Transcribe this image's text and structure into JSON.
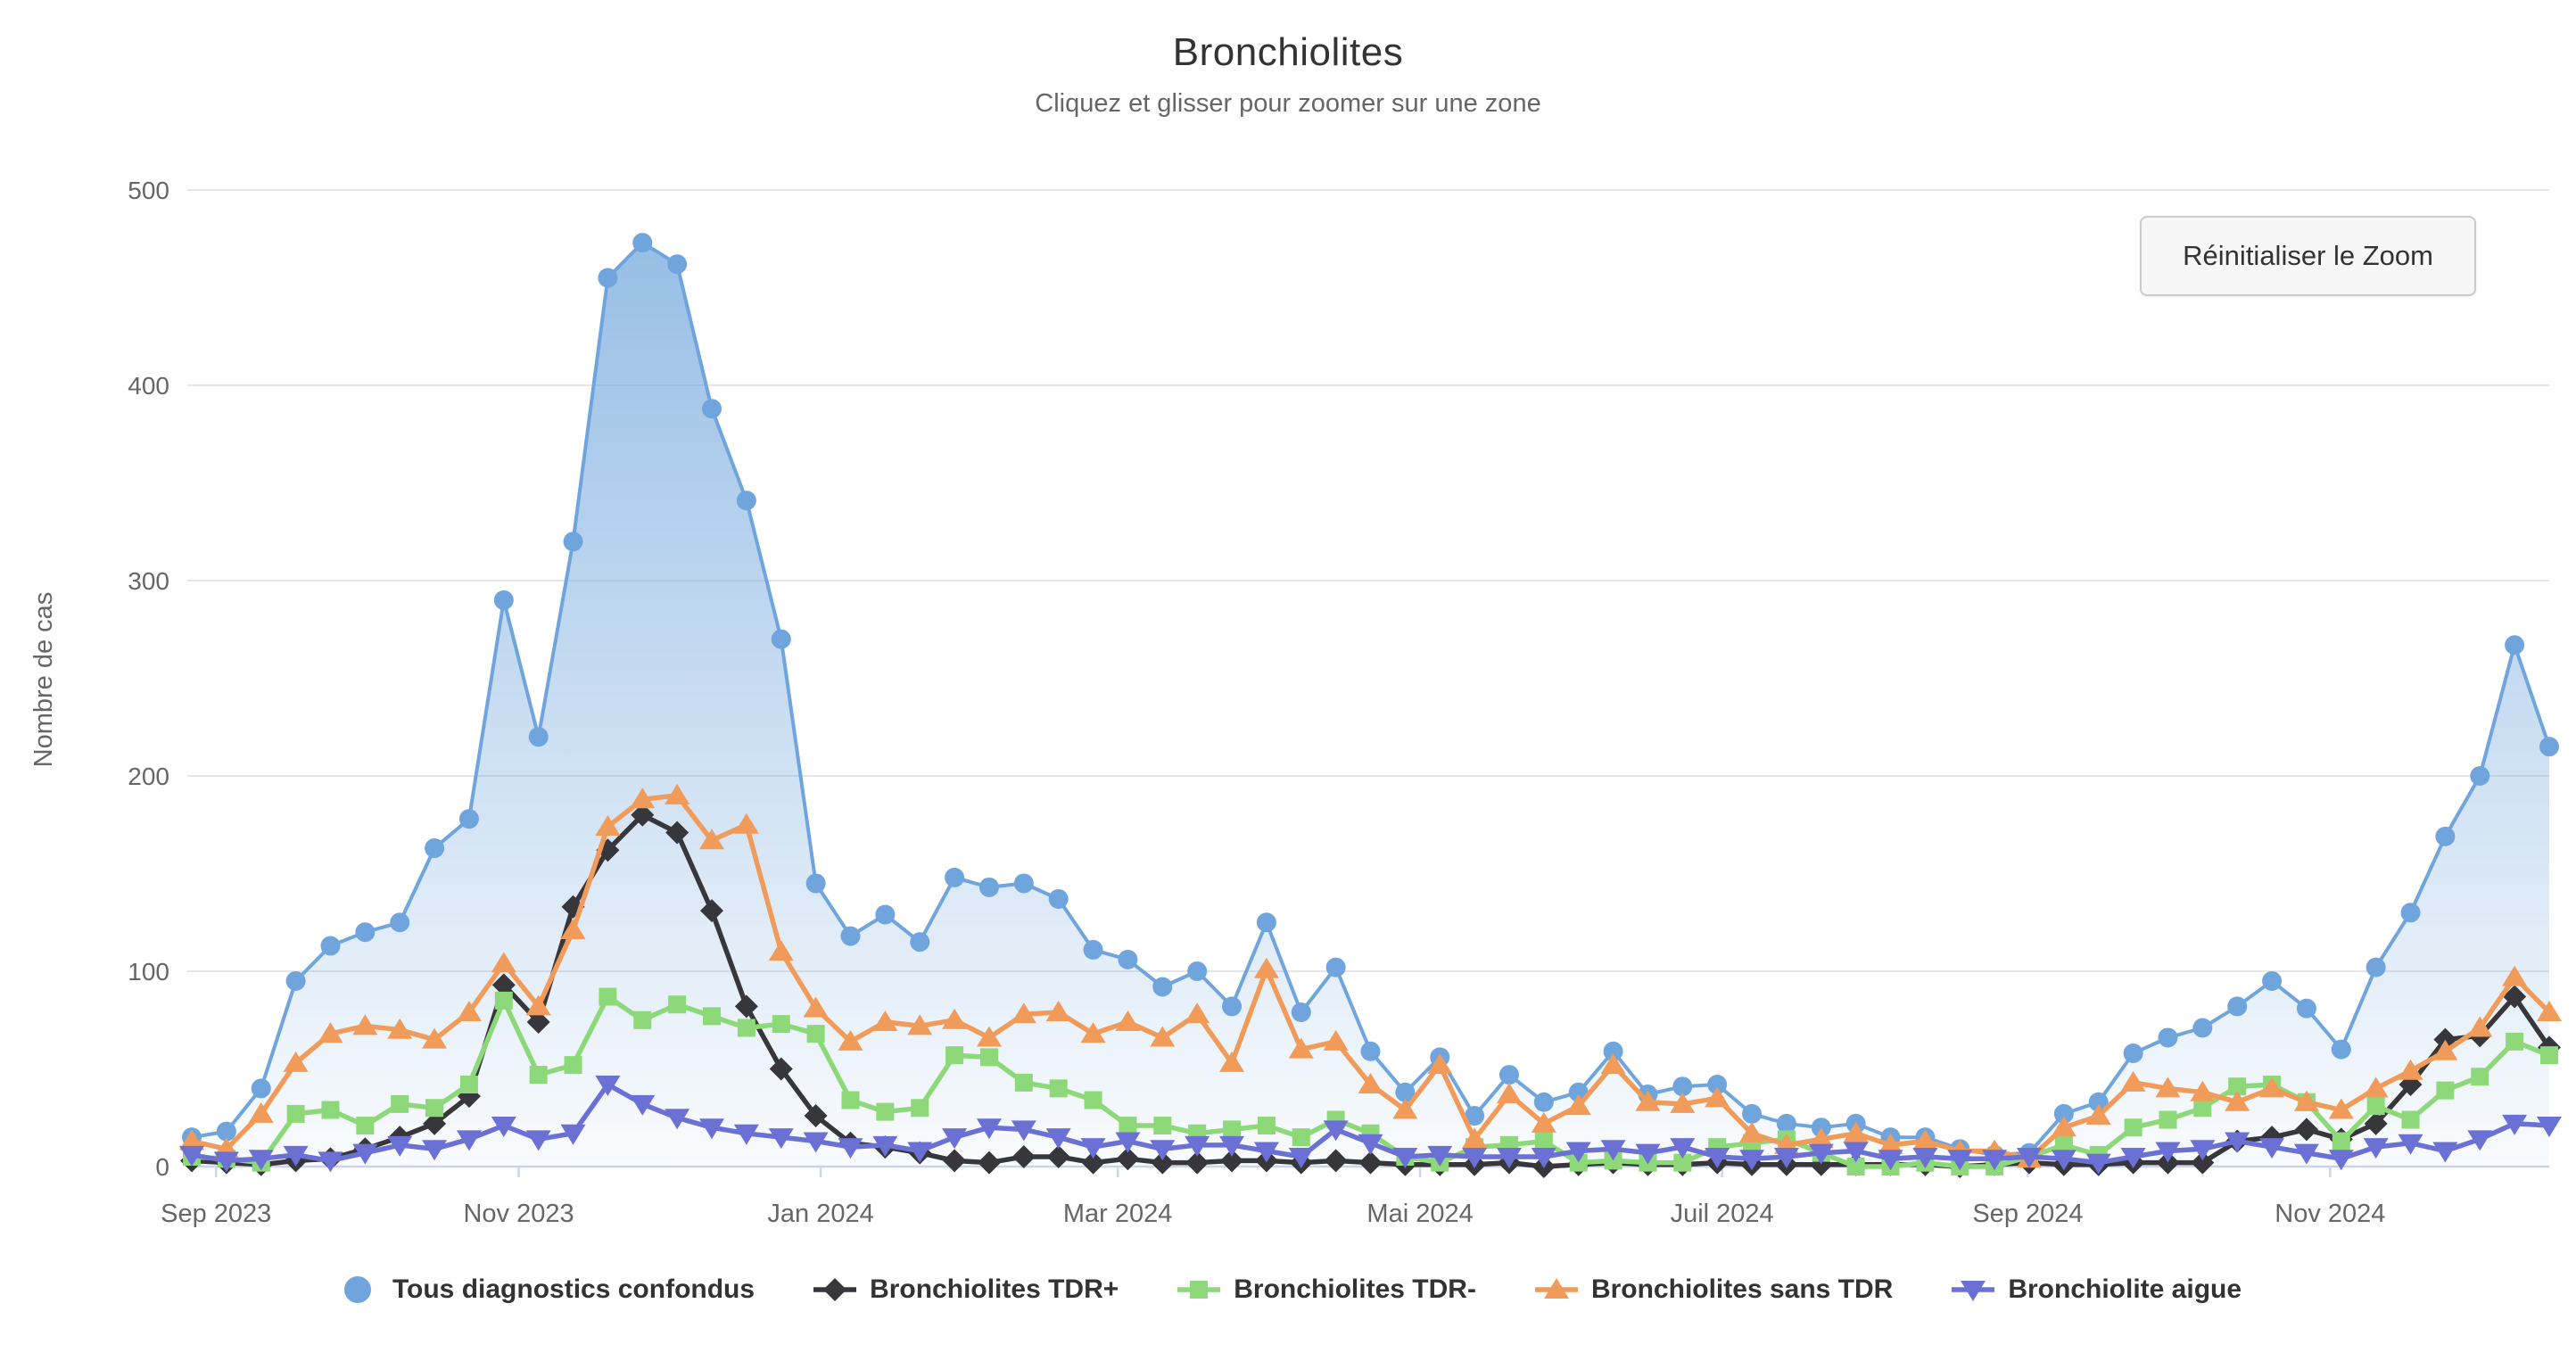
{
  "header": {
    "title": "Bronchiolites",
    "subtitle": "Cliquez et glisser pour zoomer sur une zone"
  },
  "toolbar": {
    "reset_zoom_label": "Réinitialiser le Zoom"
  },
  "chart_data": {
    "type": "line",
    "title": "Bronchiolites",
    "subtitle": "Cliquez et glisser pour zoomer sur une zone",
    "xlabel": "",
    "ylabel": "Nombre de cas",
    "ylim": [
      0,
      500
    ],
    "y_ticks": [
      0,
      100,
      200,
      300,
      400,
      500
    ],
    "grid": "horizontal",
    "legend_position": "bottom",
    "x_unit": "week",
    "points": 69,
    "x_ticks": [
      {
        "label": "Sep 2023",
        "pos": 0.7
      },
      {
        "label": "Nov 2023",
        "pos": 9.43
      },
      {
        "label": "Jan 2024",
        "pos": 18.14
      },
      {
        "label": "Mar 2024",
        "pos": 26.71
      },
      {
        "label": "Mai 2024",
        "pos": 35.43
      },
      {
        "label": "Juil 2024",
        "pos": 44.14
      },
      {
        "label": "Sep 2024",
        "pos": 52.96
      },
      {
        "label": "Nov 2024",
        "pos": 61.68
      }
    ],
    "axis_colors": {
      "grid": "#e6e6e6",
      "axis_line": "#ccd6eb",
      "tick": "#ccd6eb",
      "label": "#666666"
    },
    "series": [
      {
        "name": "Tous diagnostics confondus",
        "color": "#6FA5DC",
        "marker": "circle",
        "fill": "area",
        "values": [
          15,
          18,
          40,
          95,
          113,
          120,
          125,
          163,
          178,
          290,
          220,
          320,
          455,
          473,
          462,
          388,
          341,
          270,
          145,
          118,
          129,
          115,
          148,
          143,
          145,
          137,
          111,
          106,
          92,
          100,
          82,
          125,
          79,
          102,
          59,
          38,
          56,
          26,
          47,
          33,
          38,
          59,
          37,
          41,
          42,
          27,
          22,
          20,
          22,
          15,
          15,
          9,
          6,
          7,
          27,
          33,
          58,
          66,
          71,
          82,
          95,
          81,
          60,
          102,
          130,
          169,
          200,
          267,
          215
        ]
      },
      {
        "name": "Bronchiolites TDR+",
        "color": "#37373B",
        "marker": "diamond",
        "fill": "none",
        "values": [
          3,
          2,
          1,
          3,
          4,
          9,
          15,
          22,
          36,
          93,
          74,
          133,
          162,
          180,
          171,
          131,
          82,
          50,
          26,
          12,
          10,
          7,
          3,
          2,
          5,
          5,
          2,
          4,
          2,
          2,
          3,
          3,
          2,
          3,
          2,
          1,
          1,
          1,
          2,
          0,
          1,
          2,
          1,
          1,
          2,
          1,
          1,
          1,
          1,
          1,
          1,
          0,
          1,
          2,
          1,
          1,
          2,
          2,
          2,
          13,
          15,
          19,
          14,
          22,
          42,
          65,
          67,
          87,
          61
        ]
      },
      {
        "name": "Bronchiolites TDR-",
        "color": "#8DD878",
        "marker": "square",
        "fill": "none",
        "values": [
          5,
          4,
          2,
          27,
          29,
          21,
          32,
          30,
          42,
          85,
          47,
          52,
          87,
          75,
          83,
          77,
          71,
          73,
          68,
          34,
          28,
          30,
          57,
          56,
          43,
          40,
          34,
          21,
          21,
          17,
          19,
          21,
          15,
          24,
          17,
          5,
          2,
          10,
          11,
          13,
          2,
          3,
          2,
          2,
          10,
          12,
          14,
          7,
          0,
          0,
          2,
          0,
          0,
          5,
          11,
          6,
          20,
          24,
          30,
          41,
          42,
          33,
          13,
          31,
          24,
          39,
          46,
          64,
          57
        ]
      },
      {
        "name": "Bronchiolites sans TDR",
        "color": "#F09B59",
        "marker": "triangle-up",
        "fill": "none",
        "values": [
          13,
          9,
          27,
          53,
          68,
          72,
          70,
          65,
          79,
          104,
          82,
          121,
          174,
          188,
          190,
          167,
          175,
          110,
          81,
          64,
          74,
          72,
          75,
          66,
          78,
          79,
          68,
          74,
          66,
          78,
          53,
          101,
          60,
          64,
          42,
          29,
          52,
          14,
          37,
          22,
          31,
          52,
          33,
          32,
          35,
          17,
          11,
          14,
          17,
          11,
          13,
          8,
          8,
          4,
          20,
          26,
          43,
          40,
          38,
          33,
          40,
          33,
          29,
          40,
          49,
          59,
          71,
          97,
          79
        ]
      },
      {
        "name": "Bronchiolite aigue",
        "color": "#6B70D5",
        "marker": "triangle-down",
        "fill": "none",
        "values": [
          6,
          3,
          4,
          6,
          3,
          7,
          11,
          9,
          14,
          21,
          14,
          17,
          42,
          32,
          25,
          20,
          17,
          15,
          13,
          10,
          11,
          8,
          15,
          20,
          19,
          15,
          10,
          13,
          9,
          11,
          11,
          8,
          5,
          19,
          12,
          5,
          6,
          5,
          5,
          5,
          8,
          9,
          7,
          10,
          5,
          4,
          5,
          7,
          8,
          4,
          5,
          4,
          4,
          5,
          4,
          2,
          5,
          8,
          9,
          13,
          10,
          7,
          4,
          10,
          12,
          8,
          14,
          22,
          21
        ]
      }
    ]
  }
}
